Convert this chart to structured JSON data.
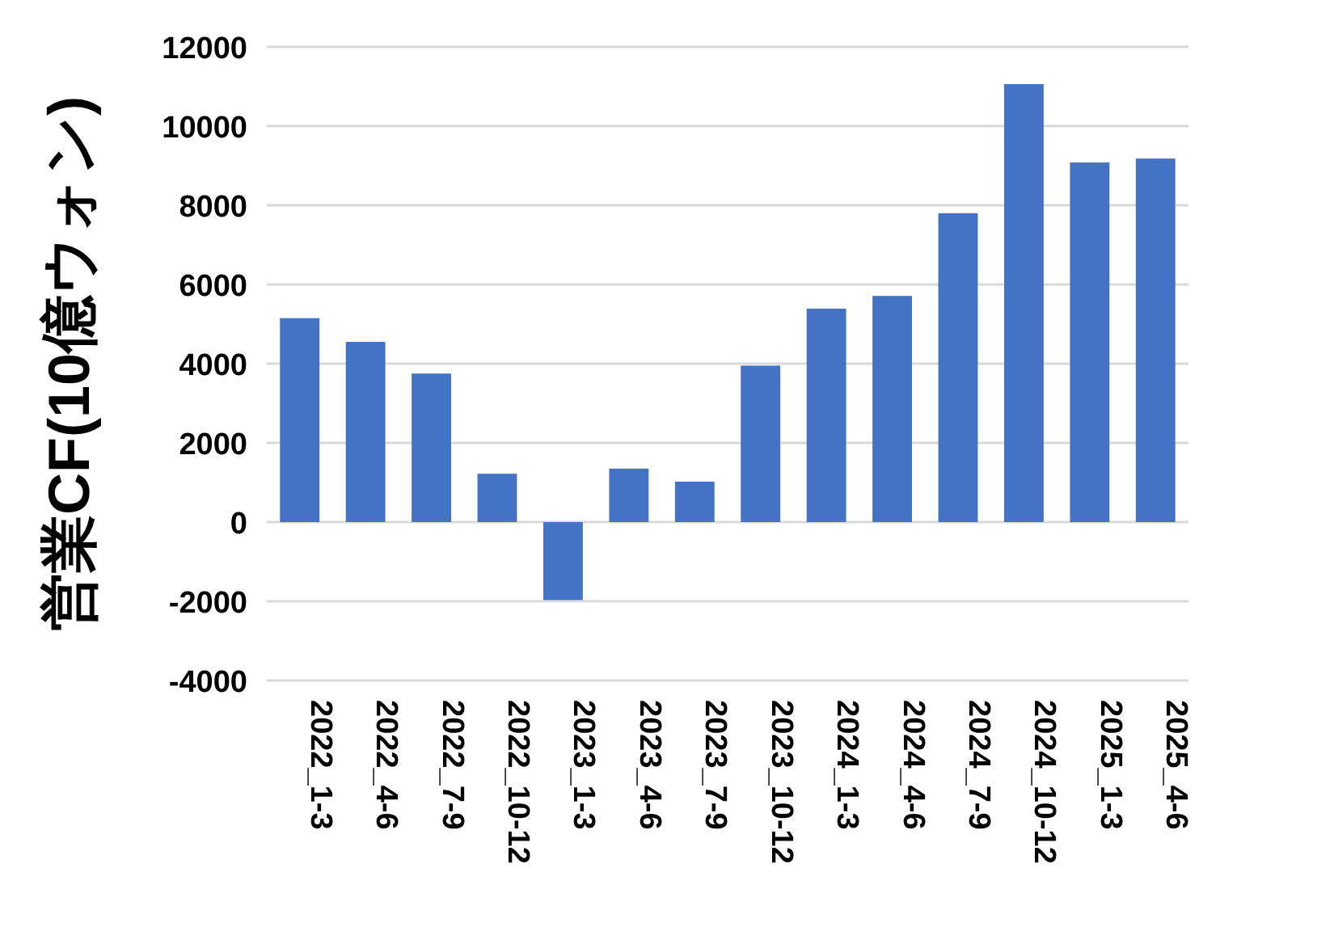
{
  "chart_data": {
    "type": "bar",
    "ylabel": "営業CF(10億ウォン)",
    "categories": [
      "2022_1-3",
      "2022_4-6",
      "2022_7-9",
      "2022_10-12",
      "2023_1-3",
      "2023_4-6",
      "2023_7-9",
      "2023_10-12",
      "2024_1-3",
      "2024_4-6",
      "2024_7-9",
      "2024_10-12",
      "2025_1-3",
      "2025_4-6"
    ],
    "values": [
      5150,
      4550,
      3750,
      1220,
      -1970,
      1350,
      1020,
      3950,
      5390,
      5710,
      7800,
      11060,
      9080,
      9180
    ],
    "color": "#4472c4",
    "ylim": [
      -4000,
      12000
    ],
    "yticks": [
      -4000,
      -2000,
      0,
      2000,
      4000,
      6000,
      8000,
      10000,
      12000
    ],
    "grid": "y"
  }
}
